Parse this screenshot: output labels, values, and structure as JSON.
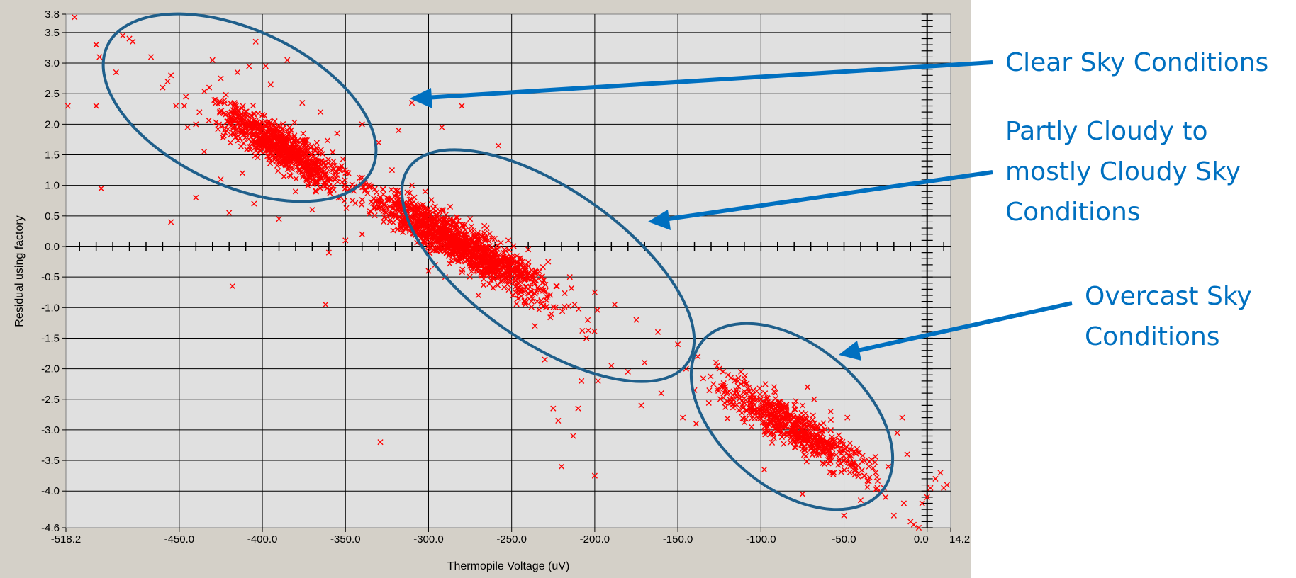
{
  "chart_data": {
    "type": "scatter",
    "xlabel": "Thermopile Voltage (uV)",
    "ylabel": "Residual using factory",
    "xlim": [
      -518.2,
      14.2
    ],
    "ylim": [
      -4.6,
      3.8
    ],
    "x_ticks": [
      {
        "value": -518.2,
        "label": "-518.2"
      },
      {
        "value": -450,
        "label": "-450.0"
      },
      {
        "value": -400,
        "label": "-400.0"
      },
      {
        "value": -350,
        "label": "-350.0"
      },
      {
        "value": -300,
        "label": "-300.0"
      },
      {
        "value": -250,
        "label": "-250.0"
      },
      {
        "value": -200,
        "label": "-200.0"
      },
      {
        "value": -150,
        "label": "-150.0"
      },
      {
        "value": -100,
        "label": "-100.0"
      },
      {
        "value": -50,
        "label": "-50.0"
      },
      {
        "value": 0,
        "label": "0.0"
      },
      {
        "value": 14.2,
        "label": "14.2"
      }
    ],
    "y_ticks": [
      {
        "value": 3.8,
        "label": "3.8"
      },
      {
        "value": 3.5,
        "label": "3.5"
      },
      {
        "value": 3.0,
        "label": "3.0"
      },
      {
        "value": 2.5,
        "label": "2.5"
      },
      {
        "value": 2.0,
        "label": "2.0"
      },
      {
        "value": 1.5,
        "label": "1.5"
      },
      {
        "value": 1.0,
        "label": "1.0"
      },
      {
        "value": 0.5,
        "label": "0.5"
      },
      {
        "value": 0.0,
        "label": "0.0"
      },
      {
        "value": -0.5,
        "label": "-0.5"
      },
      {
        "value": -1.0,
        "label": "-1.0"
      },
      {
        "value": -1.5,
        "label": "-1.5"
      },
      {
        "value": -2.0,
        "label": "-2.0"
      },
      {
        "value": -2.5,
        "label": "-2.5"
      },
      {
        "value": -3.0,
        "label": "-3.0"
      },
      {
        "value": -3.5,
        "label": "-3.5"
      },
      {
        "value": -4.0,
        "label": "-4.0"
      },
      {
        "value": -4.6,
        "label": "-4.6"
      }
    ],
    "grid": true,
    "marker": "x",
    "marker_color": "#ff0000",
    "plot_background": "#e0e0e0",
    "frame_background": "#d4d0c8",
    "points": [
      [
        -513,
        3.75
      ],
      [
        -517,
        2.3
      ],
      [
        -500,
        3.3
      ],
      [
        -498,
        3.1
      ],
      [
        -500,
        2.3
      ],
      [
        -497,
        0.95
      ],
      [
        -488,
        2.85
      ],
      [
        -484,
        3.45
      ],
      [
        -480,
        3.4
      ],
      [
        -478,
        3.35
      ],
      [
        -467,
        3.1
      ],
      [
        -455,
        2.8
      ],
      [
        -457,
        2.7
      ],
      [
        -460,
        2.6
      ],
      [
        -452,
        2.3
      ],
      [
        -447,
        2.3
      ],
      [
        -455,
        0.4
      ],
      [
        -440,
        0.8
      ],
      [
        -430,
        3.05
      ],
      [
        -420,
        0.55
      ],
      [
        -418,
        -0.65
      ],
      [
        -404,
        3.35
      ],
      [
        -398,
        2.95
      ],
      [
        -385,
        3.05
      ],
      [
        -362,
        -0.95
      ],
      [
        -360,
        -0.1
      ],
      [
        -329,
        -3.2
      ],
      [
        -300,
        -0.4
      ],
      [
        -292,
        1.95
      ],
      [
        -280,
        2.3
      ],
      [
        -258,
        1.65
      ],
      [
        -310,
        2.35
      ],
      [
        -318,
        1.9
      ],
      [
        -245,
        -0.7
      ],
      [
        -238,
        -0.9
      ],
      [
        -236,
        -1.3
      ],
      [
        -225,
        -2.65
      ],
      [
        -222,
        -2.85
      ],
      [
        -220,
        -3.6
      ],
      [
        -213,
        -3.1
      ],
      [
        -210,
        -2.65
      ],
      [
        -200,
        -3.75
      ],
      [
        -198,
        -2.2
      ],
      [
        -172,
        -2.6
      ],
      [
        -170,
        -1.9
      ],
      [
        -147,
        -2.8
      ],
      [
        -139,
        -2.9
      ],
      [
        -127,
        -1.9
      ],
      [
        -112,
        -2.05
      ],
      [
        -98,
        -3.65
      ],
      [
        -92,
        -2.3
      ],
      [
        -85,
        -2.95
      ],
      [
        -75,
        -4.05
      ],
      [
        -72,
        -2.3
      ],
      [
        -68,
        -2.5
      ],
      [
        -62,
        -3.3
      ],
      [
        -58,
        -2.7
      ],
      [
        -56,
        -3.7
      ],
      [
        -50,
        -4.4
      ],
      [
        -48,
        -2.8
      ],
      [
        -40,
        -4.15
      ],
      [
        -35,
        -3.6
      ],
      [
        -30,
        -3.95
      ],
      [
        -25,
        -4.1
      ],
      [
        -20,
        -4.4
      ],
      [
        -18,
        -3.05
      ],
      [
        -15,
        -2.8
      ],
      [
        -12,
        -3.4
      ],
      [
        -10,
        -4.5
      ],
      [
        -8,
        -4.55
      ],
      [
        -5,
        -4.6
      ],
      [
        -3,
        -4.2
      ],
      [
        0,
        -4.1
      ],
      [
        2,
        -3.95
      ],
      [
        5,
        -3.8
      ],
      [
        8,
        -3.7
      ],
      [
        10,
        -3.95
      ],
      [
        12,
        -3.9
      ],
      [
        -140,
        -2.35
      ],
      [
        -145,
        -2.0
      ],
      [
        -160,
        -2.4
      ],
      [
        -180,
        -2.05
      ],
      [
        -190,
        -1.95
      ],
      [
        -205,
        -1.5
      ],
      [
        -208,
        -2.2
      ],
      [
        -230,
        -1.85
      ],
      [
        -255,
        -0.1
      ],
      [
        -270,
        -0.8
      ],
      [
        -290,
        -0.5
      ],
      [
        -296,
        -0.3
      ],
      [
        -340,
        0.2
      ],
      [
        -350,
        0.1
      ],
      [
        -370,
        0.6
      ],
      [
        -380,
        0.9
      ],
      [
        -390,
        0.45
      ],
      [
        -405,
        0.7
      ],
      [
        -412,
        1.2
      ],
      [
        -425,
        1.1
      ],
      [
        -435,
        1.55
      ],
      [
        -440,
        2.0
      ],
      [
        -446,
        2.45
      ],
      [
        -445,
        1.95
      ],
      [
        -432,
        2.6
      ],
      [
        -425,
        2.75
      ],
      [
        -415,
        2.85
      ],
      [
        -408,
        2.95
      ],
      [
        -395,
        2.65
      ],
      [
        -376,
        2.35
      ],
      [
        -365,
        2.2
      ],
      [
        -355,
        1.85
      ],
      [
        -340,
        2.0
      ],
      [
        -330,
        1.7
      ],
      [
        -322,
        1.25
      ],
      [
        -310,
        1.0
      ],
      [
        -302,
        0.9
      ],
      [
        -287,
        0.65
      ],
      [
        -275,
        0.45
      ],
      [
        -265,
        0.3
      ],
      [
        -252,
        0.1
      ],
      [
        -240,
        -0.05
      ],
      [
        -228,
        -0.25
      ],
      [
        -215,
        -0.5
      ],
      [
        -200,
        -0.75
      ],
      [
        -188,
        -0.95
      ],
      [
        -175,
        -1.2
      ],
      [
        -162,
        -1.4
      ],
      [
        -150,
        -1.6
      ],
      [
        -138,
        -1.8
      ],
      [
        -125,
        -2.0
      ],
      [
        -112,
        -2.25
      ],
      [
        -100,
        -2.5
      ],
      [
        -88,
        -2.75
      ],
      [
        -75,
        -3.0
      ],
      [
        -62,
        -3.25
      ],
      [
        -50,
        -3.5
      ],
      [
        -38,
        -3.75
      ],
      [
        -26,
        -3.95
      ],
      [
        -14,
        -4.2
      ]
    ],
    "cluster_trend": {
      "x_from": -450,
      "x_to": -10,
      "y_at_from": 2.55,
      "y_at_to": -4.0
    }
  },
  "annotations": {
    "clear_sky": [
      "Clear Sky Conditions"
    ],
    "partly_cloudy": [
      "Partly Cloudy to",
      "mostly Cloudy Sky",
      "Conditions"
    ],
    "overcast": [
      "Overcast Sky",
      "Conditions"
    ],
    "color": "#0070c0",
    "ellipse_color": "#1f5f8b"
  }
}
